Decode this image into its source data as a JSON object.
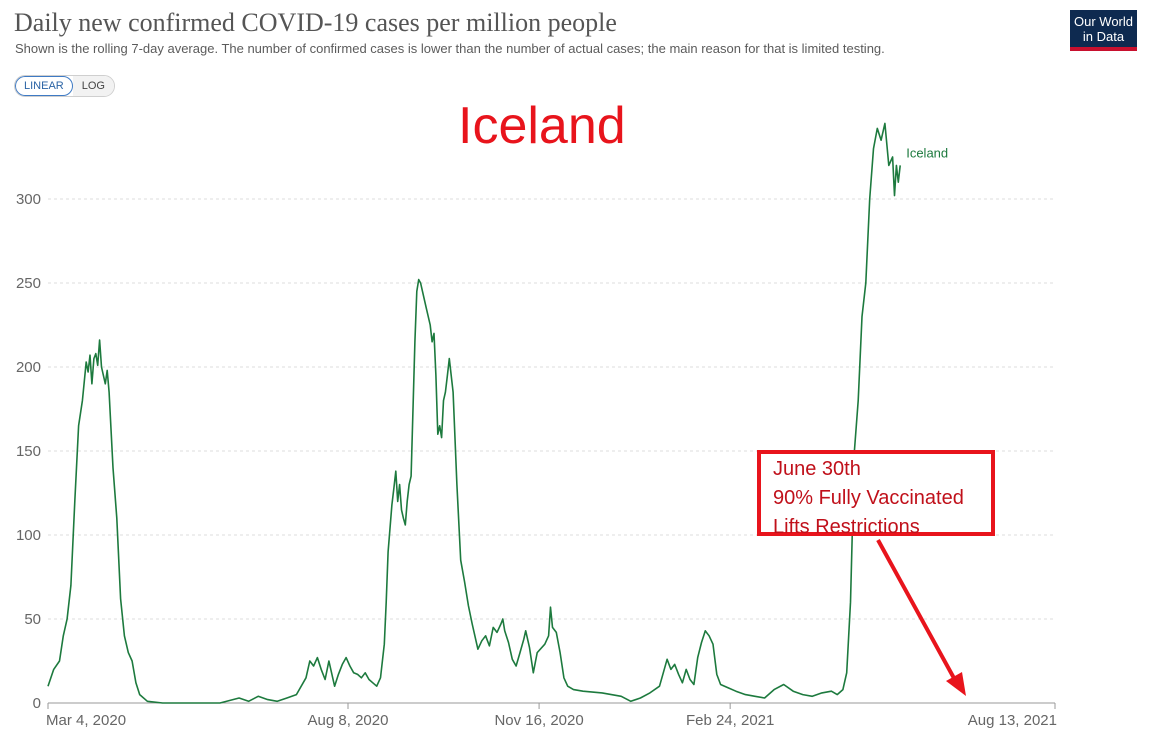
{
  "header": {
    "title": "Daily new confirmed COVID-19 cases per million people",
    "subtitle": "Shown is the rolling 7-day average. The number of confirmed cases is lower than the number of actual cases; the main reason for that is limited testing."
  },
  "logo": {
    "line1": "Our World",
    "line2": "in Data"
  },
  "scale_toggle": {
    "linear_label": "LINEAR",
    "log_label": "LOG",
    "selected": "LINEAR"
  },
  "annotations": {
    "overlay_title": "Iceland",
    "callout_lines": [
      "June 30th",
      "90% Fully Vaccinated",
      "Lifts Restrictions"
    ],
    "callout_color": "#e8141c"
  },
  "chart_data": {
    "type": "line",
    "title": "Daily new confirmed COVID-19 cases per million people",
    "xlabel": "",
    "ylabel": "",
    "ylim": [
      0,
      350
    ],
    "yticks": [
      0,
      50,
      100,
      150,
      200,
      250,
      300
    ],
    "xticks": [
      {
        "day": 0,
        "label": "Mar 4, 2020"
      },
      {
        "day": 157,
        "label": "Aug 8, 2020"
      },
      {
        "day": 257,
        "label": "Nov 16, 2020"
      },
      {
        "day": 357,
        "label": "Feb 24, 2021"
      },
      {
        "day": 527,
        "label": "Aug 13, 2021"
      }
    ],
    "grid": true,
    "series": [
      {
        "name": "Iceland",
        "color": "#1d7a3e",
        "points": [
          [
            0,
            10
          ],
          [
            3,
            20
          ],
          [
            6,
            25
          ],
          [
            8,
            40
          ],
          [
            10,
            50
          ],
          [
            12,
            70
          ],
          [
            14,
            120
          ],
          [
            16,
            165
          ],
          [
            18,
            180
          ],
          [
            20,
            203
          ],
          [
            21,
            197
          ],
          [
            22,
            207
          ],
          [
            23,
            190
          ],
          [
            24,
            205
          ],
          [
            25,
            208
          ],
          [
            26,
            201
          ],
          [
            27,
            216
          ],
          [
            28,
            200
          ],
          [
            29,
            195
          ],
          [
            30,
            190
          ],
          [
            31,
            198
          ],
          [
            32,
            185
          ],
          [
            34,
            140
          ],
          [
            36,
            110
          ],
          [
            38,
            62
          ],
          [
            40,
            40
          ],
          [
            42,
            30
          ],
          [
            44,
            25
          ],
          [
            46,
            12
          ],
          [
            48,
            5
          ],
          [
            52,
            1
          ],
          [
            60,
            0
          ],
          [
            90,
            0
          ],
          [
            100,
            3
          ],
          [
            105,
            1
          ],
          [
            110,
            4
          ],
          [
            115,
            2
          ],
          [
            120,
            1
          ],
          [
            125,
            3
          ],
          [
            130,
            5
          ],
          [
            135,
            15
          ],
          [
            137,
            25
          ],
          [
            139,
            22
          ],
          [
            141,
            27
          ],
          [
            143,
            20
          ],
          [
            145,
            14
          ],
          [
            147,
            25
          ],
          [
            150,
            10
          ],
          [
            152,
            17
          ],
          [
            154,
            23
          ],
          [
            156,
            27
          ],
          [
            158,
            22
          ],
          [
            160,
            18
          ],
          [
            162,
            17
          ],
          [
            164,
            15
          ],
          [
            166,
            18
          ],
          [
            168,
            14
          ],
          [
            170,
            12
          ],
          [
            172,
            10
          ],
          [
            174,
            15
          ],
          [
            176,
            35
          ],
          [
            177,
            60
          ],
          [
            178,
            90
          ],
          [
            180,
            118
          ],
          [
            181,
            128
          ],
          [
            182,
            138
          ],
          [
            183,
            120
          ],
          [
            184,
            130
          ],
          [
            185,
            115
          ],
          [
            186,
            110
          ],
          [
            187,
            106
          ],
          [
            188,
            120
          ],
          [
            189,
            130
          ],
          [
            190,
            135
          ],
          [
            192,
            215
          ],
          [
            193,
            245
          ],
          [
            194,
            252
          ],
          [
            195,
            250
          ],
          [
            196,
            245
          ],
          [
            198,
            235
          ],
          [
            200,
            225
          ],
          [
            201,
            215
          ],
          [
            202,
            220
          ],
          [
            203,
            195
          ],
          [
            204,
            160
          ],
          [
            205,
            165
          ],
          [
            206,
            158
          ],
          [
            207,
            180
          ],
          [
            208,
            185
          ],
          [
            209,
            195
          ],
          [
            210,
            205
          ],
          [
            212,
            185
          ],
          [
            214,
            130
          ],
          [
            216,
            85
          ],
          [
            218,
            72
          ],
          [
            220,
            58
          ],
          [
            222,
            47
          ],
          [
            224,
            37
          ],
          [
            225,
            32
          ],
          [
            227,
            37
          ],
          [
            229,
            40
          ],
          [
            231,
            34
          ],
          [
            233,
            45
          ],
          [
            235,
            42
          ],
          [
            237,
            47
          ],
          [
            238,
            50
          ],
          [
            239,
            43
          ],
          [
            241,
            36
          ],
          [
            243,
            26
          ],
          [
            245,
            22
          ],
          [
            247,
            30
          ],
          [
            249,
            38
          ],
          [
            250,
            43
          ],
          [
            252,
            33
          ],
          [
            254,
            18
          ],
          [
            256,
            30
          ],
          [
            260,
            35
          ],
          [
            262,
            40
          ],
          [
            263,
            57
          ],
          [
            264,
            45
          ],
          [
            266,
            42
          ],
          [
            268,
            30
          ],
          [
            270,
            15
          ],
          [
            272,
            10
          ],
          [
            275,
            8
          ],
          [
            280,
            7
          ],
          [
            290,
            6
          ],
          [
            300,
            4
          ],
          [
            305,
            1
          ],
          [
            310,
            3
          ],
          [
            315,
            6
          ],
          [
            320,
            10
          ],
          [
            322,
            18
          ],
          [
            324,
            26
          ],
          [
            326,
            20
          ],
          [
            328,
            23
          ],
          [
            330,
            17
          ],
          [
            332,
            12
          ],
          [
            334,
            20
          ],
          [
            336,
            14
          ],
          [
            338,
            11
          ],
          [
            340,
            27
          ],
          [
            342,
            36
          ],
          [
            344,
            43
          ],
          [
            346,
            40
          ],
          [
            348,
            35
          ],
          [
            350,
            17
          ],
          [
            352,
            11
          ],
          [
            356,
            9
          ],
          [
            360,
            7
          ],
          [
            365,
            5
          ],
          [
            370,
            4
          ],
          [
            375,
            3
          ],
          [
            380,
            8
          ],
          [
            385,
            11
          ],
          [
            390,
            7
          ],
          [
            395,
            5
          ],
          [
            400,
            4
          ],
          [
            405,
            6
          ],
          [
            410,
            7
          ],
          [
            413,
            5
          ],
          [
            416,
            8
          ],
          [
            418,
            18
          ],
          [
            420,
            60
          ],
          [
            422,
            150
          ],
          [
            424,
            180
          ],
          [
            426,
            230
          ],
          [
            428,
            250
          ],
          [
            430,
            300
          ],
          [
            432,
            330
          ],
          [
            434,
            342
          ],
          [
            436,
            335
          ],
          [
            437,
            340
          ],
          [
            438,
            345
          ],
          [
            440,
            320
          ],
          [
            442,
            325
          ],
          [
            443,
            302
          ],
          [
            444,
            320
          ],
          [
            445,
            310
          ],
          [
            446,
            320
          ]
        ]
      }
    ]
  }
}
